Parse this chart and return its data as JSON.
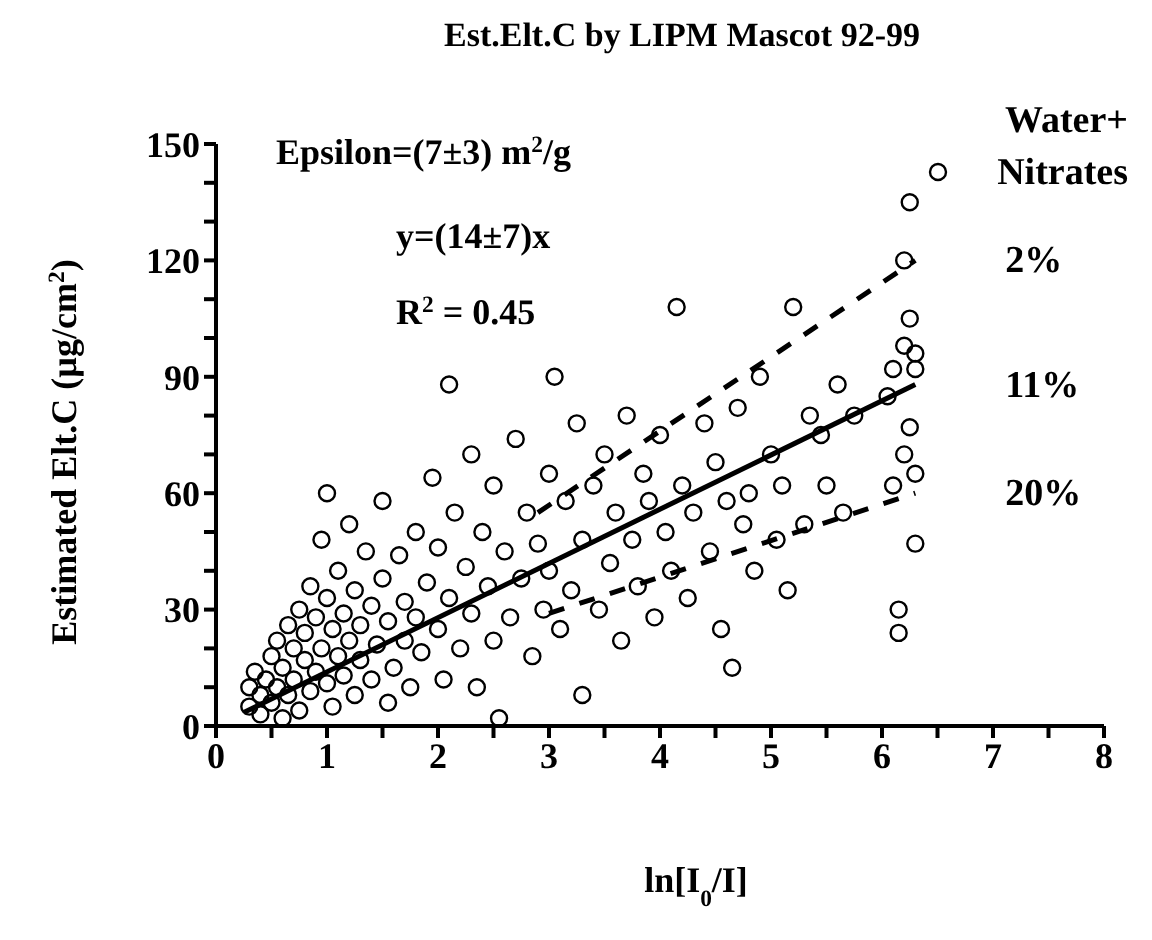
{
  "chart_data": {
    "type": "scatter",
    "title": "Est.Elt.C by LIPM Mascot 92-99",
    "xlabel": "ln[I$_{0}$/I]",
    "ylabel": "Estimated Elt.C (µg/cm$^{2}$)",
    "annotations": [
      "Epsilon=(7±3) m$^{2}$/g",
      "y=(14±7)x",
      "R$^{2}$ = 0.45"
    ],
    "xlim": [
      0,
      8
    ],
    "ylim": [
      0,
      150
    ],
    "xticks": [
      0,
      {
        "value": 0.5,
        "label": null
      },
      1,
      {
        "value": 1.5,
        "label": null
      },
      2,
      {
        "value": 2.5,
        "label": null
      },
      3,
      {
        "value": 3.5,
        "label": null
      },
      4,
      {
        "value": 4.5,
        "label": null
      },
      5,
      {
        "value": 5.5,
        "label": null
      },
      6,
      {
        "value": 6.5,
        "label": null
      },
      7,
      {
        "value": 7.5,
        "label": null
      },
      8
    ],
    "yticks": [
      0,
      {
        "value": 10,
        "label": null
      },
      {
        "value": 20,
        "label": null
      },
      30,
      {
        "value": 40,
        "label": null
      },
      {
        "value": 50,
        "label": null
      },
      60,
      {
        "value": 70,
        "label": null
      },
      {
        "value": 80,
        "label": null
      },
      90,
      {
        "value": 100,
        "label": null
      },
      {
        "value": 110,
        "label": null
      },
      120,
      {
        "value": 130,
        "label": null
      },
      {
        "value": 140,
        "label": null
      },
      150
    ],
    "grid": false,
    "legend": "top right",
    "marker": "circle",
    "series": [
      {
        "name": "Water+ Nitrates",
        "color": "#000000",
        "x": [
          0.3,
          0.3,
          0.35,
          0.4,
          0.4,
          0.45,
          0.5,
          0.5,
          0.55,
          0.55,
          0.6,
          0.6,
          0.65,
          0.65,
          0.7,
          0.7,
          0.75,
          0.75,
          0.8,
          0.8,
          0.85,
          0.85,
          0.9,
          0.9,
          0.95,
          0.95,
          1.0,
          1.0,
          1.0,
          1.05,
          1.05,
          1.1,
          1.1,
          1.15,
          1.15,
          1.2,
          1.2,
          1.25,
          1.25,
          1.3,
          1.3,
          1.35,
          1.4,
          1.4,
          1.45,
          1.5,
          1.5,
          1.55,
          1.55,
          1.6,
          1.65,
          1.7,
          1.7,
          1.75,
          1.8,
          1.8,
          1.85,
          1.9,
          1.95,
          2.0,
          2.0,
          2.05,
          2.1,
          2.1,
          2.15,
          2.2,
          2.25,
          2.3,
          2.3,
          2.35,
          2.4,
          2.45,
          2.5,
          2.5,
          2.55,
          2.6,
          2.65,
          2.7,
          2.75,
          2.8,
          2.85,
          2.9,
          2.95,
          3.0,
          3.0,
          3.05,
          3.1,
          3.15,
          3.2,
          3.25,
          3.3,
          3.3,
          3.4,
          3.45,
          3.5,
          3.55,
          3.6,
          3.65,
          3.7,
          3.75,
          3.8,
          3.85,
          3.9,
          3.95,
          4.0,
          4.05,
          4.1,
          4.15,
          4.2,
          4.25,
          4.3,
          4.4,
          4.45,
          4.5,
          4.55,
          4.6,
          4.65,
          4.7,
          4.75,
          4.8,
          4.85,
          4.9,
          5.0,
          5.05,
          5.1,
          5.15,
          5.2,
          5.3,
          5.35,
          5.45,
          5.5,
          5.6,
          5.65,
          5.75,
          6.05,
          6.1,
          6.1,
          6.15,
          6.15,
          6.2,
          6.2,
          6.2,
          6.25,
          6.25,
          6.25,
          6.3,
          6.3,
          6.3,
          6.3
        ],
        "values": [
          10,
          5,
          14,
          8,
          3,
          12,
          18,
          6,
          22,
          10,
          15,
          2,
          26,
          8,
          20,
          12,
          30,
          4,
          17,
          24,
          9,
          36,
          14,
          28,
          20,
          48,
          11,
          33,
          60,
          25,
          5,
          18,
          40,
          29,
          13,
          22,
          52,
          35,
          8,
          26,
          17,
          45,
          31,
          12,
          21,
          38,
          58,
          27,
          6,
          15,
          44,
          32,
          22,
          10,
          50,
          28,
          19,
          37,
          64,
          25,
          46,
          12,
          33,
          88,
          55,
          20,
          41,
          70,
          29,
          10,
          50,
          36,
          22,
          62,
          2,
          45,
          28,
          74,
          38,
          55,
          18,
          47,
          30,
          65,
          40,
          90,
          25,
          58,
          35,
          78,
          48,
          8,
          62,
          30,
          70,
          42,
          55,
          22,
          80,
          48,
          36,
          65,
          58,
          28,
          75,
          50,
          40,
          108,
          62,
          33,
          55,
          78,
          45,
          68,
          25,
          58,
          15,
          82,
          52,
          60,
          40,
          90,
          70,
          48,
          62,
          35,
          108,
          52,
          80,
          75,
          62,
          88,
          55,
          80,
          85,
          92,
          62,
          30,
          24,
          120,
          98,
          70,
          135,
          105,
          77,
          92,
          65,
          47,
          96
        ]
      },
      {
        "type": "line",
        "name": "2%",
        "color": "#000000",
        "line_style": "dashed",
        "marker": "none",
        "x": [
          2.9,
          6.3
        ],
        "values": [
          55,
          120
        ]
      },
      {
        "type": "line",
        "name": "11%",
        "color": "#000000",
        "line_style": "solid",
        "marker": "none",
        "x": [
          0.25,
          6.3
        ],
        "values": [
          3.5,
          88
        ]
      },
      {
        "type": "line",
        "name": "20%",
        "color": "#000000",
        "line_style": "dashed",
        "marker": "none",
        "x": [
          3,
          6.3
        ],
        "values": [
          29,
          60
        ]
      }
    ]
  }
}
